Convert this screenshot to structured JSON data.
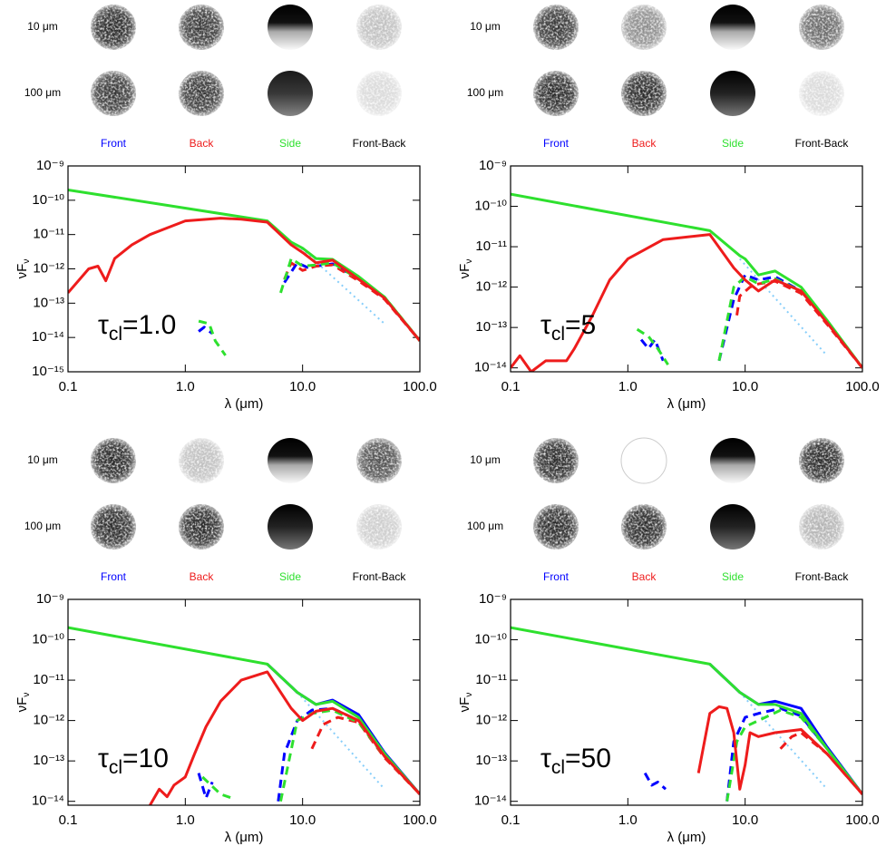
{
  "chart_data": [
    {
      "type": "line",
      "xscale": "log",
      "yscale": "log",
      "image_rows": [
        "10 μm",
        "100 μm"
      ],
      "image_columns": [
        "Front",
        "Back",
        "Side",
        "Front-Back"
      ],
      "image_column_colors": [
        "#0000ff",
        "#ee1c1c",
        "#2ee02e",
        "#000000"
      ],
      "xlabel": "λ (μm)",
      "ylabel": [
        "νF",
        "ν"
      ],
      "annotation": [
        "τ",
        "cl",
        "=1.0"
      ],
      "xlim": [
        0.1,
        100
      ],
      "xticks": [
        0.1,
        {
          "value": 1,
          "label": "1.0"
        },
        {
          "value": 10,
          "label": "10.0"
        },
        {
          "value": 100,
          "label": "100.0"
        }
      ],
      "ylim": [
        1e-15,
        1e-09
      ],
      "yticks": [
        {
          "value": 1e-09,
          "label": "10⁻⁹"
        },
        {
          "value": 1e-10,
          "label": "10⁻¹⁰"
        },
        {
          "value": 1e-11,
          "label": "10⁻¹¹"
        },
        {
          "value": 1e-12,
          "label": "10⁻¹²"
        },
        {
          "value": 1e-13,
          "label": "10⁻¹³"
        },
        {
          "value": 1e-14,
          "label": "10⁻¹⁴"
        },
        {
          "value": 1e-15,
          "label": "10⁻¹⁵"
        }
      ],
      "series": [
        {
          "color": "#87cefa",
          "style": "dotted",
          "x": [
            9,
            50
          ],
          "values": [
            5e-12,
            2.5e-14
          ]
        },
        {
          "color": "#0000ff",
          "style": "dashed",
          "x": [
            1.3,
            1.45,
            1.7,
            3,
            7,
            9,
            11,
            18,
            30,
            50,
            100
          ],
          "values": [
            1.5e-14,
            2e-14,
            1.3e-14,
            null,
            4e-13,
            1.5e-12,
            1.1e-12,
            1.4e-12,
            5e-13,
            1.4e-13,
            8e-15
          ]
        },
        {
          "color": "#ee1c1c",
          "style": "dashed",
          "x": [
            7,
            8,
            10,
            13,
            18,
            30,
            50,
            100
          ],
          "values": [
            5e-13,
            1.5e-12,
            9e-13,
            1.2e-12,
            1.3e-12,
            4.5e-13,
            1.3e-13,
            8e-15
          ]
        },
        {
          "color": "#2ee02e",
          "style": "dashed",
          "x": [
            1.3,
            1.6,
            1.8,
            2.2,
            4,
            6.5,
            8,
            10,
            13,
            18,
            30,
            50,
            100
          ],
          "values": [
            3e-14,
            2.5e-14,
            8e-15,
            3e-15,
            null,
            2e-13,
            2e-12,
            1.2e-12,
            1.3e-12,
            1.5e-12,
            5e-13,
            1.5e-13,
            8e-15
          ]
        },
        {
          "color": "#2ee02e",
          "style": "solid",
          "x": [
            0.1,
            5,
            8,
            10,
            13,
            18,
            30,
            50,
            100
          ],
          "values": [
            2e-10,
            2.5e-11,
            6e-12,
            4e-12,
            2e-12,
            1.9e-12,
            6e-13,
            1.5e-13,
            8e-15
          ]
        },
        {
          "color": "#ee1c1c",
          "style": "solid",
          "x": [
            0.1,
            0.15,
            0.18,
            0.21,
            0.25,
            0.35,
            0.5,
            1,
            2,
            3,
            5,
            8,
            10,
            13,
            18,
            30,
            50,
            100
          ],
          "values": [
            2e-13,
            1e-12,
            1.2e-12,
            4.5e-13,
            2e-12,
            5e-12,
            1e-11,
            2.5e-11,
            3e-11,
            2.8e-11,
            2.3e-11,
            5e-12,
            3e-12,
            1.5e-12,
            1.8e-12,
            5e-13,
            1.4e-13,
            8e-15
          ]
        }
      ]
    },
    {
      "type": "line",
      "xscale": "log",
      "yscale": "log",
      "image_rows": [
        "10 μm",
        "100 μm"
      ],
      "image_columns": [
        "Front",
        "Back",
        "Side",
        "Front-Back"
      ],
      "image_column_colors": [
        "#0000ff",
        "#ee1c1c",
        "#2ee02e",
        "#000000"
      ],
      "xlabel": "λ (μm)",
      "ylabel": [
        "νF",
        "ν"
      ],
      "annotation": [
        "τ",
        "cl",
        "=5"
      ],
      "xlim": [
        0.1,
        100
      ],
      "xticks": [
        0.1,
        {
          "value": 1,
          "label": "1.0"
        },
        {
          "value": 10,
          "label": "10.0"
        },
        {
          "value": 100,
          "label": "100.0"
        }
      ],
      "ylim": [
        8e-15,
        1e-09
      ],
      "yticks": [
        {
          "value": 1e-09,
          "label": "10⁻⁹"
        },
        {
          "value": 1e-10,
          "label": "10⁻¹⁰"
        },
        {
          "value": 1e-11,
          "label": "10⁻¹¹"
        },
        {
          "value": 1e-12,
          "label": "10⁻¹²"
        },
        {
          "value": 1e-13,
          "label": "10⁻¹³"
        },
        {
          "value": 1e-14,
          "label": "10⁻¹⁴"
        }
      ],
      "series": [
        {
          "color": "#87cefa",
          "style": "dotted",
          "x": [
            9,
            50
          ],
          "values": [
            5e-12,
            2e-14
          ]
        },
        {
          "color": "#0000ff",
          "style": "dashed",
          "x": [
            1.3,
            1.5,
            1.7,
            2,
            4,
            6,
            8,
            10,
            13,
            18,
            30,
            50,
            100
          ],
          "values": [
            5e-14,
            3e-14,
            5e-14,
            1.5e-14,
            null,
            1.5e-14,
            5e-13,
            2e-12,
            1.5e-12,
            1.8e-12,
            8e-13,
            1.4e-13,
            1e-14
          ]
        },
        {
          "color": "#ee1c1c",
          "style": "dashed",
          "x": [
            8.5,
            9,
            11,
            13,
            18,
            30,
            50,
            100
          ],
          "values": [
            2e-13,
            6e-13,
            1e-12,
            1.2e-12,
            1.4e-12,
            7e-13,
            1.2e-13,
            1e-14
          ]
        },
        {
          "color": "#2ee02e",
          "style": "dashed",
          "x": [
            1.2,
            1.5,
            1.8,
            2.2,
            4,
            6,
            8,
            10,
            13,
            18,
            30,
            50,
            100
          ],
          "values": [
            9e-14,
            6e-14,
            3e-14,
            1.2e-14,
            null,
            1.5e-14,
            1e-12,
            1.8e-12,
            1.2e-12,
            1.6e-12,
            8e-13,
            1.4e-13,
            1e-14
          ]
        },
        {
          "color": "#2ee02e",
          "style": "solid",
          "x": [
            0.1,
            5,
            9,
            10,
            13,
            18,
            30,
            50,
            100
          ],
          "values": [
            2e-10,
            2.5e-11,
            6e-12,
            5e-12,
            2e-12,
            2.5e-12,
            1e-12,
            1.5e-13,
            1e-14
          ]
        },
        {
          "color": "#ee1c1c",
          "style": "solid",
          "x": [
            0.1,
            0.12,
            0.15,
            0.2,
            0.3,
            0.35,
            0.5,
            0.7,
            1,
            2,
            5,
            8,
            10,
            13,
            18,
            30,
            50,
            100
          ],
          "values": [
            1e-14,
            2e-14,
            8e-15,
            1.5e-14,
            1.5e-14,
            3e-14,
            2e-13,
            1.5e-12,
            5e-12,
            1.5e-11,
            2e-11,
            3e-12,
            1.5e-12,
            8e-13,
            1.5e-12,
            8e-13,
            1.3e-13,
            1e-14
          ]
        }
      ]
    },
    {
      "type": "line",
      "xscale": "log",
      "yscale": "log",
      "image_rows": [
        "10 μm",
        "100 μm"
      ],
      "image_columns": [
        "Front",
        "Back",
        "Side",
        "Front-Back"
      ],
      "image_column_colors": [
        "#0000ff",
        "#ee1c1c",
        "#2ee02e",
        "#000000"
      ],
      "xlabel": "λ (μm)",
      "ylabel": [
        "νF",
        "ν"
      ],
      "annotation": [
        "τ",
        "cl",
        "=10"
      ],
      "xlim": [
        0.1,
        100
      ],
      "xticks": [
        0.1,
        {
          "value": 1,
          "label": "1.0"
        },
        {
          "value": 10,
          "label": "10.0"
        },
        {
          "value": 100,
          "label": "100.0"
        }
      ],
      "ylim": [
        8e-15,
        1e-09
      ],
      "yticks": [
        {
          "value": 1e-09,
          "label": "10⁻⁹"
        },
        {
          "value": 1e-10,
          "label": "10⁻¹⁰"
        },
        {
          "value": 1e-11,
          "label": "10⁻¹¹"
        },
        {
          "value": 1e-12,
          "label": "10⁻¹²"
        },
        {
          "value": 1e-13,
          "label": "10⁻¹³"
        },
        {
          "value": 1e-14,
          "label": "10⁻¹⁴"
        }
      ],
      "series": [
        {
          "color": "#87cefa",
          "style": "dotted",
          "x": [
            9,
            50
          ],
          "values": [
            5e-12,
            2e-14
          ]
        },
        {
          "color": "#0000ff",
          "style": "dashed",
          "x": [
            1.3,
            1.5,
            1.7,
            3,
            6.2,
            7,
            9,
            12,
            18,
            30,
            50,
            100
          ],
          "values": [
            5e-14,
            1.2e-14,
            3e-14,
            null,
            1e-14,
            1.5e-13,
            1e-12,
            1.8e-12,
            2e-12,
            1e-12,
            1.4e-13,
            1.5e-14
          ]
        },
        {
          "color": "#ee1c1c",
          "style": "dashed",
          "x": [
            12,
            15,
            20,
            30,
            50,
            100
          ],
          "values": [
            2e-13,
            8e-13,
            1.2e-12,
            9e-13,
            1.2e-13,
            1.5e-14
          ]
        },
        {
          "color": "#2ee02e",
          "style": "dashed",
          "x": [
            1.4,
            2,
            2.5,
            4,
            6.5,
            9,
            12,
            18,
            30,
            50,
            100
          ],
          "values": [
            4e-14,
            1.5e-14,
            1.2e-14,
            null,
            1e-14,
            1e-12,
            1.5e-12,
            1.8e-12,
            9e-13,
            1.3e-13,
            1.5e-14
          ]
        },
        {
          "color": "#0000ff",
          "style": "solid",
          "x": [
            5,
            9,
            13,
            18,
            30,
            50,
            100
          ],
          "values": [
            2.5e-11,
            5e-12,
            2.5e-12,
            3.2e-12,
            1.4e-12,
            1.6e-13,
            1.5e-14
          ]
        },
        {
          "color": "#2ee02e",
          "style": "solid",
          "x": [
            0.1,
            5,
            9,
            13,
            18,
            30,
            50,
            100
          ],
          "values": [
            2e-10,
            2.5e-11,
            5e-12,
            2.5e-12,
            3e-12,
            1.2e-12,
            1.5e-13,
            1.5e-14
          ]
        },
        {
          "color": "#ee1c1c",
          "style": "solid",
          "x": [
            0.5,
            0.6,
            0.7,
            0.8,
            1,
            1.2,
            1.5,
            2,
            3,
            5,
            8,
            10,
            13,
            18,
            30,
            50,
            100
          ],
          "values": [
            8e-15,
            2e-14,
            1.3e-14,
            2.5e-14,
            4e-14,
            1.5e-13,
            7e-13,
            3e-12,
            1e-11,
            1.6e-11,
            2e-12,
            1e-12,
            1.7e-12,
            2e-12,
            1e-12,
            1.3e-13,
            1.5e-14
          ]
        }
      ]
    },
    {
      "type": "line",
      "xscale": "log",
      "yscale": "log",
      "image_rows": [
        "10 μm",
        "100 μm"
      ],
      "image_columns": [
        "Front",
        "Back",
        "Side",
        "Front-Back"
      ],
      "image_column_colors": [
        "#0000ff",
        "#ee1c1c",
        "#2ee02e",
        "#000000"
      ],
      "xlabel": "λ (μm)",
      "ylabel": [
        "νF",
        "ν"
      ],
      "annotation": [
        "τ",
        "cl",
        "=50"
      ],
      "xlim": [
        0.1,
        100
      ],
      "xticks": [
        0.1,
        {
          "value": 1,
          "label": "1.0"
        },
        {
          "value": 10,
          "label": "10.0"
        },
        {
          "value": 100,
          "label": "100.0"
        }
      ],
      "ylim": [
        8e-15,
        1e-09
      ],
      "yticks": [
        {
          "value": 1e-09,
          "label": "10⁻⁹"
        },
        {
          "value": 1e-10,
          "label": "10⁻¹⁰"
        },
        {
          "value": 1e-11,
          "label": "10⁻¹¹"
        },
        {
          "value": 1e-12,
          "label": "10⁻¹²"
        },
        {
          "value": 1e-13,
          "label": "10⁻¹³"
        },
        {
          "value": 1e-14,
          "label": "10⁻¹⁴"
        }
      ],
      "series": [
        {
          "color": "#87cefa",
          "style": "dotted",
          "x": [
            9,
            50
          ],
          "values": [
            5e-12,
            2e-14
          ]
        },
        {
          "color": "#0000ff",
          "style": "dashed",
          "x": [
            1.4,
            1.6,
            1.8,
            2.1,
            4,
            7,
            8,
            10,
            13,
            20,
            30,
            50,
            100
          ],
          "values": [
            5e-14,
            2.5e-14,
            3e-14,
            2e-14,
            null,
            1e-14,
            3e-13,
            1.2e-12,
            1.5e-12,
            2e-12,
            1.3e-12,
            2e-13,
            1.5e-14
          ]
        },
        {
          "color": "#ee1c1c",
          "style": "dashed",
          "x": [
            20,
            25,
            30,
            50,
            100
          ],
          "values": [
            2e-13,
            4e-13,
            5e-13,
            1.5e-13,
            1.5e-14
          ]
        },
        {
          "color": "#2ee02e",
          "style": "dashed",
          "x": [
            7,
            8.5,
            10,
            13,
            20,
            30,
            50,
            100
          ],
          "values": [
            1e-14,
            3e-13,
            7e-13,
            1e-12,
            1.8e-12,
            1.2e-12,
            2e-13,
            1.5e-14
          ]
        },
        {
          "color": "#0000ff",
          "style": "solid",
          "x": [
            5,
            9,
            13,
            18,
            30,
            50,
            100
          ],
          "values": [
            2.5e-11,
            5e-12,
            2.5e-12,
            3e-12,
            2e-12,
            2.2e-13,
            1.5e-14
          ]
        },
        {
          "color": "#2ee02e",
          "style": "solid",
          "x": [
            0.1,
            5,
            9,
            13,
            18,
            30,
            50,
            100
          ],
          "values": [
            2e-10,
            2.5e-11,
            5e-12,
            2.5e-12,
            2.5e-12,
            1.5e-12,
            2e-13,
            1.5e-14
          ]
        },
        {
          "color": "#ee1c1c",
          "style": "solid",
          "x": [
            4,
            5,
            6,
            7,
            8,
            9,
            10,
            11,
            13,
            18,
            30,
            50,
            100
          ],
          "values": [
            5e-14,
            1.5e-12,
            2.2e-12,
            2e-12,
            5e-13,
            2e-14,
            8e-14,
            5e-13,
            4e-13,
            5e-13,
            6e-13,
            1.5e-13,
            1.5e-14
          ]
        }
      ]
    }
  ]
}
